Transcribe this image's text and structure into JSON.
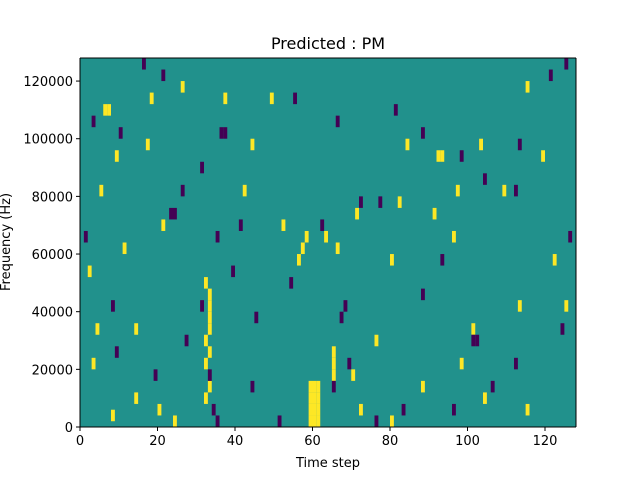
{
  "chart_data": {
    "type": "heatmap",
    "title": "Predicted : PM",
    "xlabel": "Time step",
    "ylabel": "Frequency (Hz)",
    "xlim": [
      0,
      128
    ],
    "ylim": [
      0,
      128000
    ],
    "xticks": [
      0,
      20,
      40,
      60,
      80,
      100,
      120
    ],
    "yticks": [
      0,
      20000,
      40000,
      60000,
      80000,
      100000,
      120000
    ],
    "xtick_labels": [
      "0",
      "20",
      "40",
      "60",
      "80",
      "100",
      "120"
    ],
    "ytick_labels": [
      "0",
      "20000",
      "40000",
      "60000",
      "80000",
      "100000",
      "120000"
    ],
    "grid": false,
    "colors": {
      "background_cell": "#21918c",
      "high": "#fde725",
      "low": "#440154"
    },
    "cell_width_steps": 1,
    "cell_height_hz": 4000,
    "cells": [
      {
        "x": 59,
        "y": 2000,
        "v": "high"
      },
      {
        "x": 60,
        "y": 2000,
        "v": "high"
      },
      {
        "x": 61,
        "y": 2000,
        "v": "high"
      },
      {
        "x": 59,
        "y": 6000,
        "v": "high"
      },
      {
        "x": 60,
        "y": 6000,
        "v": "high"
      },
      {
        "x": 61,
        "y": 6000,
        "v": "high"
      },
      {
        "x": 59,
        "y": 10000,
        "v": "high"
      },
      {
        "x": 60,
        "y": 10000,
        "v": "high"
      },
      {
        "x": 61,
        "y": 10000,
        "v": "high"
      },
      {
        "x": 59,
        "y": 14000,
        "v": "high"
      },
      {
        "x": 60,
        "y": 14000,
        "v": "high"
      },
      {
        "x": 61,
        "y": 14000,
        "v": "high"
      },
      {
        "x": 65,
        "y": 18000,
        "v": "high"
      },
      {
        "x": 65,
        "y": 22000,
        "v": "high"
      },
      {
        "x": 65,
        "y": 26000,
        "v": "high"
      },
      {
        "x": 32,
        "y": 10000,
        "v": "high"
      },
      {
        "x": 33,
        "y": 14000,
        "v": "high"
      },
      {
        "x": 32,
        "y": 22000,
        "v": "high"
      },
      {
        "x": 33,
        "y": 26000,
        "v": "high"
      },
      {
        "x": 32,
        "y": 30000,
        "v": "high"
      },
      {
        "x": 33,
        "y": 34000,
        "v": "high"
      },
      {
        "x": 33,
        "y": 38000,
        "v": "high"
      },
      {
        "x": 33,
        "y": 42000,
        "v": "high"
      },
      {
        "x": 33,
        "y": 46000,
        "v": "high"
      },
      {
        "x": 32,
        "y": 50000,
        "v": "high"
      },
      {
        "x": 56,
        "y": 58000,
        "v": "high"
      },
      {
        "x": 57,
        "y": 62000,
        "v": "high"
      },
      {
        "x": 58,
        "y": 66000,
        "v": "high"
      },
      {
        "x": 6,
        "y": 110000,
        "v": "high"
      },
      {
        "x": 7,
        "y": 110000,
        "v": "high"
      },
      {
        "x": 92,
        "y": 94000,
        "v": "high"
      },
      {
        "x": 93,
        "y": 94000,
        "v": "high"
      },
      {
        "x": 8,
        "y": 4000,
        "v": "high"
      },
      {
        "x": 24,
        "y": 2000,
        "v": "high"
      },
      {
        "x": 20,
        "y": 6000,
        "v": "high"
      },
      {
        "x": 14,
        "y": 10000,
        "v": "high"
      },
      {
        "x": 3,
        "y": 22000,
        "v": "high"
      },
      {
        "x": 4,
        "y": 34000,
        "v": "high"
      },
      {
        "x": 14,
        "y": 34000,
        "v": "high"
      },
      {
        "x": 2,
        "y": 54000,
        "v": "high"
      },
      {
        "x": 11,
        "y": 62000,
        "v": "high"
      },
      {
        "x": 21,
        "y": 70000,
        "v": "high"
      },
      {
        "x": 5,
        "y": 82000,
        "v": "high"
      },
      {
        "x": 9,
        "y": 94000,
        "v": "high"
      },
      {
        "x": 17,
        "y": 98000,
        "v": "high"
      },
      {
        "x": 18,
        "y": 114000,
        "v": "high"
      },
      {
        "x": 26,
        "y": 118000,
        "v": "high"
      },
      {
        "x": 37,
        "y": 114000,
        "v": "high"
      },
      {
        "x": 44,
        "y": 98000,
        "v": "high"
      },
      {
        "x": 49,
        "y": 114000,
        "v": "high"
      },
      {
        "x": 42,
        "y": 82000,
        "v": "high"
      },
      {
        "x": 52,
        "y": 70000,
        "v": "high"
      },
      {
        "x": 63,
        "y": 66000,
        "v": "high"
      },
      {
        "x": 66,
        "y": 62000,
        "v": "high"
      },
      {
        "x": 71,
        "y": 74000,
        "v": "high"
      },
      {
        "x": 82,
        "y": 78000,
        "v": "high"
      },
      {
        "x": 84,
        "y": 98000,
        "v": "high"
      },
      {
        "x": 97,
        "y": 82000,
        "v": "high"
      },
      {
        "x": 103,
        "y": 98000,
        "v": "high"
      },
      {
        "x": 109,
        "y": 82000,
        "v": "high"
      },
      {
        "x": 115,
        "y": 118000,
        "v": "high"
      },
      {
        "x": 119,
        "y": 94000,
        "v": "high"
      },
      {
        "x": 122,
        "y": 58000,
        "v": "high"
      },
      {
        "x": 125,
        "y": 42000,
        "v": "high"
      },
      {
        "x": 113,
        "y": 42000,
        "v": "high"
      },
      {
        "x": 101,
        "y": 34000,
        "v": "high"
      },
      {
        "x": 96,
        "y": 66000,
        "v": "high"
      },
      {
        "x": 91,
        "y": 74000,
        "v": "high"
      },
      {
        "x": 80,
        "y": 58000,
        "v": "high"
      },
      {
        "x": 76,
        "y": 30000,
        "v": "high"
      },
      {
        "x": 70,
        "y": 18000,
        "v": "high"
      },
      {
        "x": 72,
        "y": 6000,
        "v": "high"
      },
      {
        "x": 80,
        "y": 2000,
        "v": "high"
      },
      {
        "x": 88,
        "y": 14000,
        "v": "high"
      },
      {
        "x": 98,
        "y": 22000,
        "v": "high"
      },
      {
        "x": 104,
        "y": 10000,
        "v": "high"
      },
      {
        "x": 115,
        "y": 6000,
        "v": "high"
      },
      {
        "x": 36,
        "y": 102000,
        "v": "low"
      },
      {
        "x": 37,
        "y": 102000,
        "v": "low"
      },
      {
        "x": 23,
        "y": 74000,
        "v": "low"
      },
      {
        "x": 24,
        "y": 74000,
        "v": "low"
      },
      {
        "x": 101,
        "y": 30000,
        "v": "low"
      },
      {
        "x": 102,
        "y": 30000,
        "v": "low"
      },
      {
        "x": 65,
        "y": 14000,
        "v": "low"
      },
      {
        "x": 69,
        "y": 22000,
        "v": "low"
      },
      {
        "x": 68,
        "y": 42000,
        "v": "low"
      },
      {
        "x": 67,
        "y": 38000,
        "v": "low"
      },
      {
        "x": 33,
        "y": 18000,
        "v": "low"
      },
      {
        "x": 34,
        "y": 6000,
        "v": "low"
      },
      {
        "x": 35,
        "y": 2000,
        "v": "low"
      },
      {
        "x": 51,
        "y": 2000,
        "v": "low"
      },
      {
        "x": 44,
        "y": 14000,
        "v": "low"
      },
      {
        "x": 31,
        "y": 42000,
        "v": "low"
      },
      {
        "x": 39,
        "y": 54000,
        "v": "low"
      },
      {
        "x": 35,
        "y": 66000,
        "v": "low"
      },
      {
        "x": 41,
        "y": 70000,
        "v": "low"
      },
      {
        "x": 26,
        "y": 82000,
        "v": "low"
      },
      {
        "x": 31,
        "y": 90000,
        "v": "low"
      },
      {
        "x": 21,
        "y": 122000,
        "v": "low"
      },
      {
        "x": 16,
        "y": 126000,
        "v": "low"
      },
      {
        "x": 10,
        "y": 102000,
        "v": "low"
      },
      {
        "x": 3,
        "y": 106000,
        "v": "low"
      },
      {
        "x": 1,
        "y": 66000,
        "v": "low"
      },
      {
        "x": 8,
        "y": 42000,
        "v": "low"
      },
      {
        "x": 9,
        "y": 26000,
        "v": "low"
      },
      {
        "x": 19,
        "y": 18000,
        "v": "low"
      },
      {
        "x": 27,
        "y": 30000,
        "v": "low"
      },
      {
        "x": 45,
        "y": 38000,
        "v": "low"
      },
      {
        "x": 54,
        "y": 50000,
        "v": "low"
      },
      {
        "x": 62,
        "y": 70000,
        "v": "low"
      },
      {
        "x": 72,
        "y": 78000,
        "v": "low"
      },
      {
        "x": 81,
        "y": 110000,
        "v": "low"
      },
      {
        "x": 88,
        "y": 102000,
        "v": "low"
      },
      {
        "x": 98,
        "y": 94000,
        "v": "low"
      },
      {
        "x": 104,
        "y": 86000,
        "v": "low"
      },
      {
        "x": 112,
        "y": 82000,
        "v": "low"
      },
      {
        "x": 113,
        "y": 98000,
        "v": "low"
      },
      {
        "x": 121,
        "y": 122000,
        "v": "low"
      },
      {
        "x": 125,
        "y": 126000,
        "v": "low"
      },
      {
        "x": 126,
        "y": 66000,
        "v": "low"
      },
      {
        "x": 124,
        "y": 34000,
        "v": "low"
      },
      {
        "x": 112,
        "y": 22000,
        "v": "low"
      },
      {
        "x": 106,
        "y": 14000,
        "v": "low"
      },
      {
        "x": 96,
        "y": 6000,
        "v": "low"
      },
      {
        "x": 83,
        "y": 6000,
        "v": "low"
      },
      {
        "x": 76,
        "y": 2000,
        "v": "low"
      },
      {
        "x": 88,
        "y": 46000,
        "v": "low"
      },
      {
        "x": 93,
        "y": 58000,
        "v": "low"
      },
      {
        "x": 77,
        "y": 78000,
        "v": "low"
      },
      {
        "x": 66,
        "y": 106000,
        "v": "low"
      },
      {
        "x": 55,
        "y": 114000,
        "v": "low"
      }
    ]
  }
}
